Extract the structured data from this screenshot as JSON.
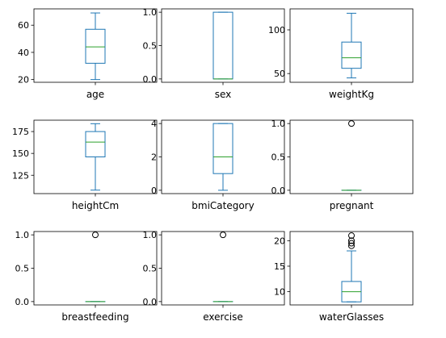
{
  "colors": {
    "box": "#1f77b4",
    "median": "#2ca02c",
    "axes": "#000000",
    "background": "#ffffff"
  },
  "chart_data": [
    {
      "type": "box",
      "xlabel": "age",
      "ylim": [
        18,
        72
      ],
      "yticks": [
        20,
        40,
        60
      ],
      "stats": {
        "whislo": 20,
        "q1": 32,
        "med": 44,
        "q3": 57,
        "whishi": 69
      },
      "fliers": []
    },
    {
      "type": "box",
      "xlabel": "sex",
      "ylim": [
        -0.05,
        1.05
      ],
      "yticks": [
        0.0,
        0.5,
        1.0
      ],
      "tick_labels": [
        "0.0",
        "0.5",
        "1.0"
      ],
      "stats": {
        "whislo": 0,
        "q1": 0,
        "med": 0,
        "q3": 1,
        "whishi": 1
      },
      "fliers": []
    },
    {
      "type": "box",
      "xlabel": "weightKg",
      "ylim": [
        40,
        124
      ],
      "yticks": [
        50,
        100
      ],
      "stats": {
        "whislo": 45,
        "q1": 56,
        "med": 68,
        "q3": 86,
        "whishi": 119
      },
      "fliers": []
    },
    {
      "type": "box",
      "xlabel": "heightCm",
      "ylim": [
        104,
        188
      ],
      "yticks": [
        125,
        150,
        175
      ],
      "stats": {
        "whislo": 108,
        "q1": 146,
        "med": 163,
        "q3": 175,
        "whishi": 184
      },
      "fliers": []
    },
    {
      "type": "box",
      "xlabel": "bmiCategory",
      "ylim": [
        -0.2,
        4.2
      ],
      "yticks": [
        0,
        2,
        4
      ],
      "stats": {
        "whislo": 0,
        "q1": 1,
        "med": 2,
        "q3": 4,
        "whishi": 4
      },
      "fliers": []
    },
    {
      "type": "box",
      "xlabel": "pregnant",
      "ylim": [
        -0.05,
        1.05
      ],
      "yticks": [
        0.0,
        0.5,
        1.0
      ],
      "tick_labels": [
        "0.0",
        "0.5",
        "1.0"
      ],
      "stats": {
        "whislo": 0,
        "q1": 0,
        "med": 0,
        "q3": 0,
        "whishi": 0
      },
      "fliers": [
        1
      ]
    },
    {
      "type": "box",
      "xlabel": "breastfeeding",
      "ylim": [
        -0.05,
        1.05
      ],
      "yticks": [
        0.0,
        0.5,
        1.0
      ],
      "tick_labels": [
        "0.0",
        "0.5",
        "1.0"
      ],
      "stats": {
        "whislo": 0,
        "q1": 0,
        "med": 0,
        "q3": 0,
        "whishi": 0
      },
      "fliers": [
        1
      ]
    },
    {
      "type": "box",
      "xlabel": "exercise",
      "ylim": [
        -0.05,
        1.05
      ],
      "yticks": [
        0.0,
        0.5,
        1.0
      ],
      "tick_labels": [
        "0.0",
        "0.5",
        "1.0"
      ],
      "stats": {
        "whislo": 0,
        "q1": 0,
        "med": 0,
        "q3": 0,
        "whishi": 0
      },
      "fliers": [
        1
      ]
    },
    {
      "type": "box",
      "xlabel": "waterGlasses",
      "ylim": [
        7.4,
        21.8
      ],
      "yticks": [
        10,
        15,
        20
      ],
      "stats": {
        "whislo": 8,
        "q1": 8,
        "med": 10,
        "q3": 12,
        "whishi": 18
      },
      "fliers": [
        19,
        19.5,
        20,
        21
      ]
    }
  ]
}
